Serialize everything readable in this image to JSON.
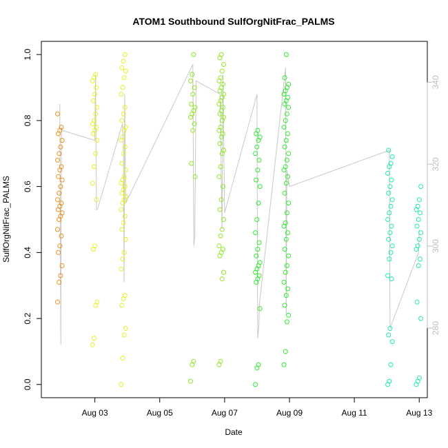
{
  "chart_data": {
    "type": "scatter",
    "title": "ATOM1 Southbound SulfOrgNitFrac_PALMS",
    "xlabel": "Date",
    "ylabel": "SulfOrgNitFrac_PALMS",
    "x_unit": "days (August 2016 day-of-month)",
    "xlim": [
      1.35,
      13.25
    ],
    "ylim": [
      -0.04,
      1.04
    ],
    "x_ticks": [
      {
        "value": 3,
        "label": "Aug 03"
      },
      {
        "value": 5,
        "label": "Aug 05"
      },
      {
        "value": 7,
        "label": "Aug 07"
      },
      {
        "value": 9,
        "label": "Aug 09"
      },
      {
        "value": 11,
        "label": "Aug 11"
      },
      {
        "value": 13,
        "label": "Aug 13"
      }
    ],
    "y_ticks": [
      {
        "value": 0.0,
        "label": "0.0"
      },
      {
        "value": 0.2,
        "label": "0.2"
      },
      {
        "value": 0.4,
        "label": "0.4"
      },
      {
        "value": 0.6,
        "label": "0.6"
      },
      {
        "value": 0.8,
        "label": "0.8"
      },
      {
        "value": 1.0,
        "label": "1.0"
      }
    ],
    "y2lim": [
      263,
      350
    ],
    "y2_ticks": [
      {
        "value": 280,
        "label": "280"
      },
      {
        "value": 300,
        "label": "300"
      },
      {
        "value": 320,
        "label": "320"
      },
      {
        "value": 340,
        "label": "340"
      }
    ],
    "grid": false,
    "legend": "none",
    "colors": {
      "track_line": "#c8c8c8",
      "right_axis": "#bdbdbd",
      "orange": "#e8901a",
      "yellow": "#e6f01e",
      "lime": "#8ee81e",
      "green": "#2de82d",
      "teal": "#1ee8b4"
    },
    "clusters": [
      {
        "x": 1.92,
        "color": "#e8901a",
        "values": [
          0.25,
          0.31,
          0.33,
          0.36,
          0.4,
          0.42,
          0.45,
          0.47,
          0.5,
          0.51,
          0.52,
          0.53,
          0.54,
          0.55,
          0.56,
          0.58,
          0.6,
          0.62,
          0.63,
          0.65,
          0.66,
          0.68,
          0.7,
          0.72,
          0.74,
          0.76,
          0.77,
          0.78,
          0.82
        ]
      },
      {
        "x": 3.0,
        "color": "#e6f01e",
        "values": [
          0.12,
          0.14,
          0.24,
          0.25,
          0.41,
          0.42,
          0.56,
          0.61,
          0.66,
          0.7,
          0.74,
          0.76,
          0.77,
          0.78,
          0.79,
          0.8,
          0.82,
          0.84,
          0.86,
          0.88,
          0.9,
          0.92,
          0.93,
          0.94
        ]
      },
      {
        "x": 3.88,
        "color": "#e6f01e",
        "values": [
          0.0,
          0.08,
          0.15,
          0.17,
          0.24,
          0.26,
          0.27,
          0.35,
          0.38,
          0.4,
          0.44,
          0.47,
          0.49,
          0.51,
          0.53,
          0.55,
          0.56,
          0.57,
          0.58,
          0.59,
          0.6,
          0.61,
          0.62,
          0.63,
          0.65,
          0.67,
          0.7,
          0.72,
          0.74,
          0.75,
          0.77,
          0.78,
          0.8,
          0.82,
          0.84,
          0.88,
          0.9,
          0.93,
          0.95,
          0.96,
          0.98,
          1.0
        ]
      },
      {
        "x": 6.02,
        "color": "#8ee81e",
        "values": [
          0.01,
          0.06,
          0.07,
          0.63,
          0.67,
          0.77,
          0.79,
          0.81,
          0.82,
          0.83,
          0.84,
          0.85,
          0.88,
          0.9,
          0.92,
          0.94,
          1.0
        ]
      },
      {
        "x": 6.9,
        "color": "#8ee81e",
        "values": [
          0.06,
          0.07,
          0.32,
          0.34,
          0.39,
          0.4,
          0.41,
          0.42,
          0.45,
          0.47,
          0.5,
          0.53,
          0.56,
          0.6,
          0.63,
          0.66,
          0.7,
          0.71,
          0.73,
          0.75,
          0.76,
          0.77,
          0.78,
          0.8,
          0.81,
          0.82,
          0.83,
          0.84,
          0.85,
          0.86,
          0.87,
          0.88,
          0.89,
          0.9,
          0.91,
          0.92,
          0.93,
          0.95,
          0.97,
          0.99,
          1.0
        ]
      },
      {
        "x": 8.02,
        "color": "#2de82d",
        "values": [
          0.0,
          0.05,
          0.06,
          0.23,
          0.31,
          0.32,
          0.33,
          0.34,
          0.35,
          0.36,
          0.37,
          0.39,
          0.41,
          0.43,
          0.46,
          0.5,
          0.55,
          0.6,
          0.62,
          0.65,
          0.68,
          0.7,
          0.72,
          0.74,
          0.75,
          0.76,
          0.77
        ]
      },
      {
        "x": 8.9,
        "color": "#2de82d",
        "values": [
          0.06,
          0.1,
          0.19,
          0.21,
          0.24,
          0.27,
          0.29,
          0.31,
          0.34,
          0.36,
          0.39,
          0.41,
          0.44,
          0.46,
          0.48,
          0.49,
          0.52,
          0.55,
          0.58,
          0.61,
          0.63,
          0.65,
          0.66,
          0.68,
          0.7,
          0.72,
          0.74,
          0.76,
          0.78,
          0.8,
          0.82,
          0.84,
          0.85,
          0.86,
          0.87,
          0.88,
          0.89,
          0.9,
          0.91,
          0.93,
          1.0
        ]
      },
      {
        "x": 12.1,
        "color": "#1ee8b4",
        "values": [
          0.0,
          0.01,
          0.06,
          0.13,
          0.15,
          0.17,
          0.32,
          0.33,
          0.38,
          0.4,
          0.42,
          0.44,
          0.46,
          0.48,
          0.5,
          0.52,
          0.54,
          0.56,
          0.58,
          0.6,
          0.62,
          0.64,
          0.66,
          0.67,
          0.69,
          0.71
        ]
      },
      {
        "x": 12.98,
        "color": "#1ee8b4",
        "values": [
          0.0,
          0.01,
          0.02,
          0.2,
          0.25,
          0.36,
          0.38,
          0.41,
          0.42,
          0.44,
          0.46,
          0.48,
          0.5,
          0.52,
          0.53,
          0.54,
          0.56,
          0.6
        ]
      }
    ],
    "track_line": [
      [
        1.92,
        0.85
      ],
      [
        1.95,
        0.12
      ],
      [
        1.97,
        0.78
      ],
      [
        2.0,
        0.77
      ],
      [
        3.0,
        0.74
      ],
      [
        3.02,
        0.94
      ],
      [
        3.05,
        0.53
      ],
      [
        3.08,
        0.53
      ],
      [
        3.85,
        0.79
      ],
      [
        3.88,
        0.73
      ],
      [
        3.9,
        0.31
      ],
      [
        3.92,
        0.88
      ],
      [
        3.95,
        0.55
      ],
      [
        6.02,
        0.97
      ],
      [
        6.05,
        0.42
      ],
      [
        6.08,
        0.45
      ],
      [
        6.12,
        0.92
      ],
      [
        6.86,
        0.88
      ],
      [
        6.92,
        0.47
      ],
      [
        6.95,
        0.94
      ],
      [
        7.0,
        0.52
      ],
      [
        8.0,
        0.88
      ],
      [
        8.02,
        0.14
      ],
      [
        8.05,
        0.17
      ],
      [
        8.08,
        0.25
      ],
      [
        8.88,
        0.96
      ],
      [
        8.9,
        0.21
      ],
      [
        8.92,
        0.65
      ],
      [
        9.0,
        0.6
      ],
      [
        12.08,
        0.71
      ],
      [
        12.1,
        0.17
      ],
      [
        12.98,
        0.4
      ],
      [
        13.0,
        0.47
      ]
    ]
  }
}
